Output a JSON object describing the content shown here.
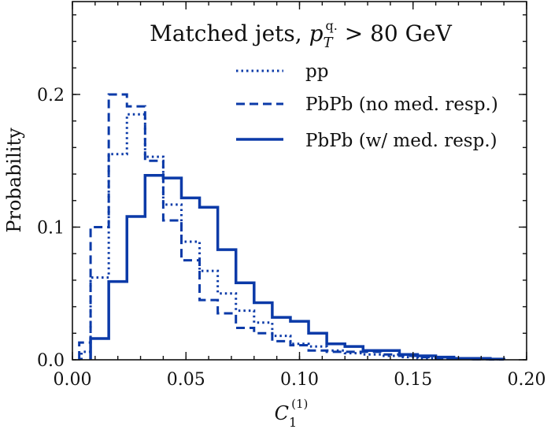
{
  "chart_data": {
    "type": "histogram-step",
    "title_text": "Matched jets, ",
    "title_math_base": "p",
    "title_math_sub": "T",
    "title_math_sup": "q.",
    "title_cut": " > 80 GeV",
    "xlabel_base": "C",
    "xlabel_sub": "1",
    "xlabel_sup": "(1)",
    "ylabel": "Probability",
    "xlim": [
      0.0,
      0.2
    ],
    "ylim": [
      0.0,
      0.27
    ],
    "xticks": [
      0.0,
      0.05,
      0.1,
      0.15,
      0.2
    ],
    "xtick_labels": [
      "0.00",
      "0.05",
      "0.10",
      "0.15",
      "0.20"
    ],
    "yticks": [
      0.0,
      0.1,
      0.2
    ],
    "ytick_labels": [
      "0.0",
      "0.1",
      "0.2"
    ],
    "legend_position": "top-right",
    "color": "#0b3aa8",
    "series": [
      {
        "name": "pp",
        "style": "dotted",
        "edges": [
          0.004,
          0.008,
          0.016,
          0.024,
          0.032,
          0.04,
          0.048,
          0.056,
          0.064,
          0.072,
          0.08,
          0.088,
          0.096,
          0.104,
          0.112,
          0.12,
          0.128,
          0.136,
          0.144,
          0.152,
          0.16,
          0.168,
          0.176,
          0.184,
          0.19
        ],
        "values": [
          0.006,
          0.062,
          0.155,
          0.185,
          0.153,
          0.117,
          0.089,
          0.067,
          0.05,
          0.037,
          0.028,
          0.018,
          0.012,
          0.01,
          0.007,
          0.005,
          0.004,
          0.003,
          0.002,
          0.001,
          0.001,
          0.0008,
          0.0005,
          0.0003
        ]
      },
      {
        "name": "PbPb (no med. resp.)",
        "style": "dashed",
        "edges": [
          0.003,
          0.008,
          0.016,
          0.024,
          0.032,
          0.04,
          0.048,
          0.056,
          0.064,
          0.072,
          0.08,
          0.088,
          0.096,
          0.104,
          0.112,
          0.12,
          0.128,
          0.136,
          0.144,
          0.152,
          0.16,
          0.168,
          0.176,
          0.184,
          0.19
        ],
        "values": [
          0.013,
          0.1,
          0.2,
          0.191,
          0.15,
          0.105,
          0.075,
          0.045,
          0.035,
          0.024,
          0.02,
          0.014,
          0.011,
          0.007,
          0.006,
          0.006,
          0.006,
          0.004,
          0.003,
          0.002,
          0.001,
          0.0007,
          0.0004,
          0.0002
        ]
      },
      {
        "name": "PbPb (w/ med. resp.)",
        "style": "solid",
        "edges": [
          0.008,
          0.016,
          0.024,
          0.032,
          0.04,
          0.048,
          0.056,
          0.064,
          0.072,
          0.08,
          0.088,
          0.096,
          0.104,
          0.112,
          0.12,
          0.128,
          0.136,
          0.144,
          0.152,
          0.16,
          0.168,
          0.176,
          0.184,
          0.19
        ],
        "values": [
          0.016,
          0.059,
          0.108,
          0.139,
          0.137,
          0.122,
          0.115,
          0.083,
          0.058,
          0.043,
          0.032,
          0.029,
          0.02,
          0.012,
          0.01,
          0.007,
          0.007,
          0.004,
          0.003,
          0.002,
          0.001,
          0.001,
          0.0005
        ]
      }
    ]
  }
}
